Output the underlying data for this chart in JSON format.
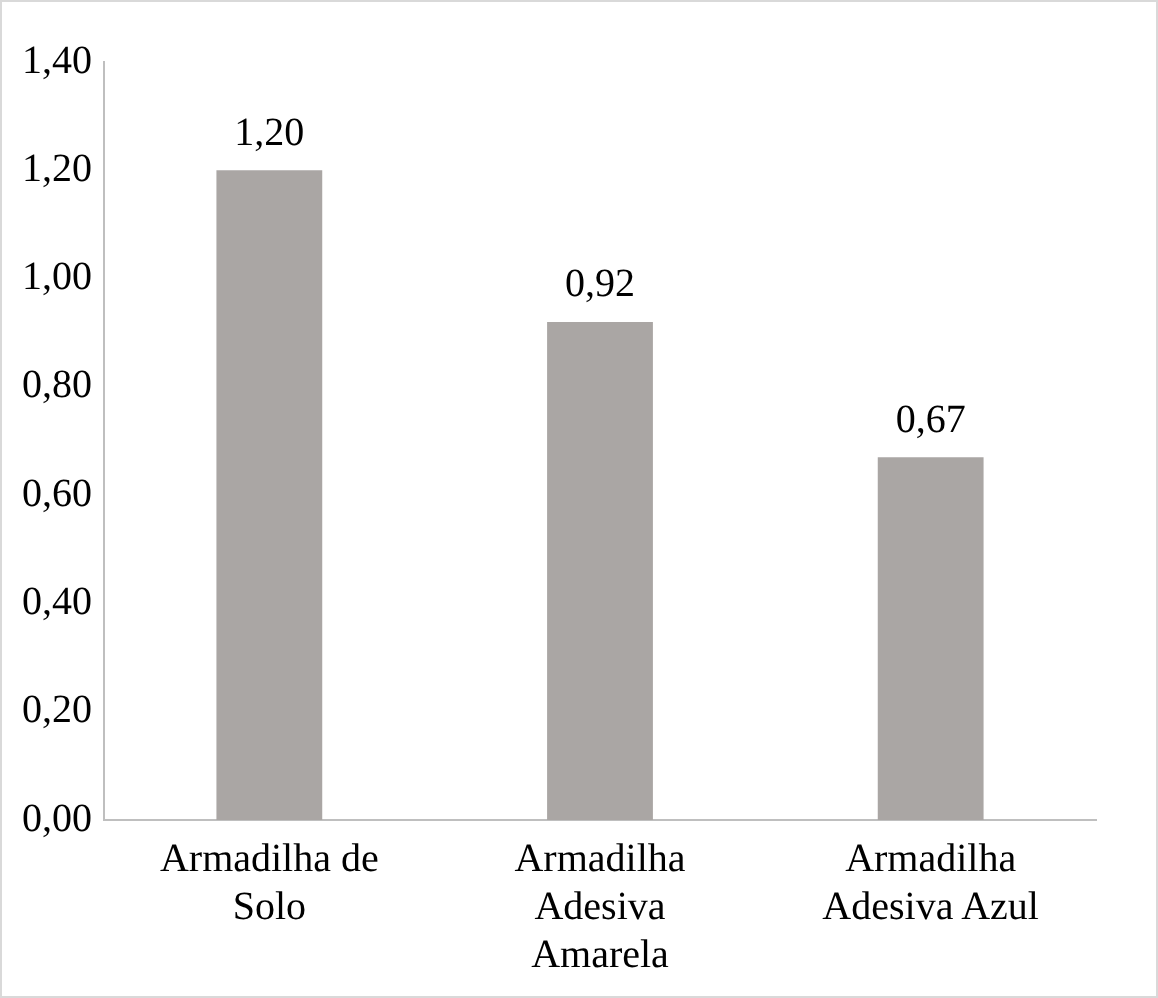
{
  "chart_data": {
    "type": "bar",
    "categories": [
      "Armadilha de Solo",
      "Armadilha Adesiva Amarela",
      "Armadilha Adesiva Azul"
    ],
    "values": [
      1.2,
      0.92,
      0.67
    ],
    "color": "#aaa6a4",
    "value_labels": [
      "1,20",
      "0,92",
      "0,67"
    ],
    "ylim": [
      0,
      1.4
    ],
    "yticks": [
      {
        "value": 0,
        "label": "0,00"
      },
      {
        "value": 0.2,
        "label": "0,20"
      },
      {
        "value": 0.4,
        "label": "0,40"
      },
      {
        "value": 0.6,
        "label": "0,60"
      },
      {
        "value": 0.8,
        "label": "0,80"
      },
      {
        "value": 1,
        "label": "1,00"
      },
      {
        "value": 1.2,
        "label": "1,20"
      },
      {
        "value": 1.4,
        "label": "1,40"
      }
    ],
    "grid": false,
    "legend": false
  }
}
